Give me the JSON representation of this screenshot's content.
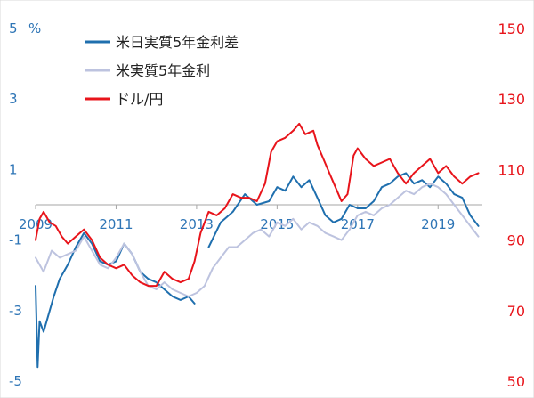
{
  "chart_data": {
    "type": "line",
    "title": "",
    "left_axis": {
      "unit_label": "%",
      "ticks": [
        5,
        3,
        1,
        -1,
        -3,
        -5
      ],
      "range": [
        -5,
        5
      ],
      "color": "#2E75B6"
    },
    "right_axis": {
      "ticks": [
        150,
        130,
        110,
        90,
        70,
        50
      ],
      "range": [
        50,
        150
      ],
      "color": "#E8141B"
    },
    "x_axis": {
      "range": [
        2009.0,
        2020.1
      ],
      "tick_labels": [
        "2009",
        "2011",
        "2013",
        "2015",
        "2017",
        "2019"
      ],
      "tick_values": [
        2009,
        2011,
        2013,
        2015,
        2017,
        2019
      ]
    },
    "grid": false,
    "legend_position": "top-left",
    "legend": [
      {
        "label": "米日実質5年金利差",
        "color": "#1F6FAE"
      },
      {
        "label": "米実質5年金利",
        "color": "#BDC3DF"
      },
      {
        "label": "ドル/円",
        "color": "#E8141B"
      }
    ],
    "series": [
      {
        "name": "米日実質5年金利差",
        "axis": "left",
        "color": "#1F6FAE",
        "x": [
          2009.0,
          2009.05,
          2009.1,
          2009.2,
          2009.3,
          2009.45,
          2009.6,
          2009.8,
          2010.0,
          2010.2,
          2010.4,
          2010.6,
          2010.8,
          2011.0,
          2011.2,
          2011.4,
          2011.6,
          2011.8,
          2012.0,
          2012.2,
          2012.4,
          2012.6,
          2012.8,
          2012.95
        ],
        "y": [
          -2.3,
          -4.6,
          -3.3,
          -3.6,
          -3.2,
          -2.6,
          -2.1,
          -1.7,
          -1.2,
          -0.8,
          -1.1,
          -1.6,
          -1.7,
          -1.6,
          -1.1,
          -1.4,
          -1.9,
          -2.1,
          -2.2,
          -2.4,
          -2.6,
          -2.7,
          -2.6,
          -2.8
        ]
      },
      {
        "name": "米日実質5年金利差",
        "axis": "left",
        "color": "#1F6FAE",
        "x": [
          2013.3,
          2013.6,
          2013.9,
          2014.2,
          2014.5,
          2014.8,
          2015.0,
          2015.2,
          2015.4,
          2015.6,
          2015.8,
          2016.0,
          2016.2,
          2016.4,
          2016.6,
          2016.8,
          2017.0,
          2017.2,
          2017.4,
          2017.6,
          2017.8,
          2018.0,
          2018.2,
          2018.4,
          2018.6,
          2018.8,
          2019.0,
          2019.2,
          2019.4,
          2019.6,
          2019.8,
          2020.0
        ],
        "y": [
          -1.2,
          -0.5,
          -0.2,
          0.3,
          0.0,
          0.1,
          0.5,
          0.4,
          0.8,
          0.5,
          0.7,
          0.2,
          -0.3,
          -0.5,
          -0.4,
          0.0,
          -0.1,
          -0.1,
          0.1,
          0.5,
          0.6,
          0.8,
          0.9,
          0.6,
          0.7,
          0.5,
          0.8,
          0.6,
          0.3,
          0.2,
          -0.3,
          -0.6
        ]
      },
      {
        "name": "米実質5年金利",
        "axis": "left",
        "color": "#BDC3DF",
        "x": [
          2009.0,
          2009.2,
          2009.4,
          2009.6,
          2009.8,
          2010.0,
          2010.2,
          2010.4,
          2010.6,
          2010.8,
          2011.0,
          2011.2,
          2011.4,
          2011.6,
          2011.8,
          2012.0,
          2012.2,
          2012.4,
          2012.6,
          2012.8,
          2013.0,
          2013.2,
          2013.4,
          2013.6,
          2013.8,
          2014.0,
          2014.2,
          2014.4,
          2014.6,
          2014.8,
          2015.0,
          2015.2,
          2015.4,
          2015.6,
          2015.8,
          2016.0,
          2016.2,
          2016.4,
          2016.6,
          2016.8,
          2017.0,
          2017.2,
          2017.4,
          2017.6,
          2017.8,
          2018.0,
          2018.2,
          2018.4,
          2018.6,
          2018.8,
          2019.0,
          2019.2,
          2019.4,
          2019.6,
          2019.8,
          2020.0
        ],
        "y": [
          -1.5,
          -1.9,
          -1.3,
          -1.5,
          -1.4,
          -1.3,
          -0.9,
          -1.3,
          -1.7,
          -1.8,
          -1.5,
          -1.1,
          -1.4,
          -1.9,
          -2.3,
          -2.4,
          -2.2,
          -2.4,
          -2.5,
          -2.6,
          -2.5,
          -2.3,
          -1.8,
          -1.5,
          -1.2,
          -1.2,
          -1.0,
          -0.8,
          -0.7,
          -0.9,
          -0.5,
          -0.6,
          -0.4,
          -0.7,
          -0.5,
          -0.6,
          -0.8,
          -0.9,
          -1.0,
          -0.7,
          -0.3,
          -0.2,
          -0.3,
          -0.1,
          0.0,
          0.2,
          0.4,
          0.3,
          0.5,
          0.6,
          0.5,
          0.3,
          0.0,
          -0.3,
          -0.6,
          -0.9
        ]
      },
      {
        "name": "ドル/円",
        "axis": "right",
        "color": "#E8141B",
        "x": [
          2009.0,
          2009.1,
          2009.2,
          2009.35,
          2009.5,
          2009.65,
          2009.8,
          2010.0,
          2010.2,
          2010.4,
          2010.6,
          2010.8,
          2011.0,
          2011.2,
          2011.4,
          2011.6,
          2011.8,
          2012.0,
          2012.2,
          2012.4,
          2012.6,
          2012.8,
          2012.95,
          2013.1,
          2013.3,
          2013.5,
          2013.7,
          2013.9,
          2014.1,
          2014.3,
          2014.5,
          2014.7,
          2014.85,
          2015.0,
          2015.2,
          2015.4,
          2015.55,
          2015.7,
          2015.9,
          2016.0,
          2016.15,
          2016.3,
          2016.45,
          2016.6,
          2016.75,
          2016.9,
          2017.0,
          2017.2,
          2017.4,
          2017.6,
          2017.8,
          2018.0,
          2018.2,
          2018.4,
          2018.6,
          2018.8,
          2019.0,
          2019.2,
          2019.4,
          2019.6,
          2019.8,
          2020.0
        ],
        "y": [
          90,
          96,
          98,
          95,
          94,
          91,
          89,
          91,
          93,
          90,
          85,
          83,
          82,
          83,
          80,
          78,
          77,
          77,
          81,
          79,
          78,
          79,
          84,
          92,
          98,
          97,
          99,
          103,
          102,
          102,
          101,
          106,
          115,
          118,
          119,
          121,
          123,
          120,
          121,
          117,
          113,
          109,
          105,
          101,
          103,
          114,
          116,
          113,
          111,
          112,
          113,
          109,
          106,
          109,
          111,
          113,
          109,
          111,
          108,
          106,
          108,
          109
        ]
      }
    ]
  }
}
